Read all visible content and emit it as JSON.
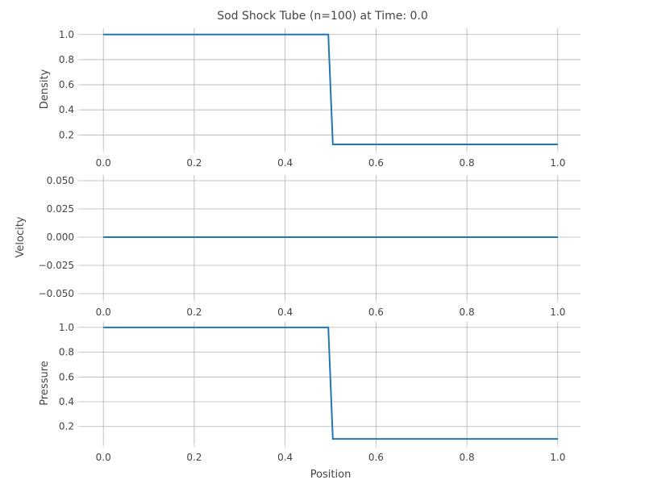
{
  "title": "Sod Shock Tube (n=100) at Time: 0.0",
  "xlabel": "Position",
  "colors": {
    "line": "#1f77b4",
    "grid": "#b0b0b0",
    "text": "#444444",
    "tick": "#cccccc"
  },
  "chart_data": [
    {
      "type": "line",
      "ylabel": "Density",
      "grid": true,
      "xlim": [
        -0.05,
        1.05
      ],
      "ylim": [
        0.08,
        1.05
      ],
      "xticks": [
        0.0,
        0.2,
        0.4,
        0.6,
        0.8,
        1.0
      ],
      "xtick_labels": [
        "0.0",
        "0.2",
        "0.4",
        "0.6",
        "0.8",
        "1.0"
      ],
      "yticks": [
        0.2,
        0.4,
        0.6,
        0.8,
        1.0
      ],
      "ytick_labels": [
        "0.2",
        "0.4",
        "0.6",
        "0.8",
        "1.0"
      ],
      "series": [
        {
          "x": [
            0.0,
            0.495,
            0.505,
            1.0
          ],
          "y": [
            1.0,
            1.0,
            0.125,
            0.125
          ]
        }
      ]
    },
    {
      "type": "line",
      "ylabel": "Velocity",
      "grid": true,
      "xlim": [
        -0.05,
        1.05
      ],
      "ylim": [
        -0.055,
        0.055
      ],
      "xticks": [
        0.0,
        0.2,
        0.4,
        0.6,
        0.8,
        1.0
      ],
      "xtick_labels": [
        "0.0",
        "0.2",
        "0.4",
        "0.6",
        "0.8",
        "1.0"
      ],
      "yticks": [
        -0.05,
        -0.025,
        0.0,
        0.025,
        0.05
      ],
      "ytick_labels": [
        "−0.050",
        "−0.025",
        "0.000",
        "0.025",
        "0.050"
      ],
      "series": [
        {
          "x": [
            0.0,
            1.0
          ],
          "y": [
            0.0,
            0.0
          ]
        }
      ]
    },
    {
      "type": "line",
      "ylabel": "Pressure",
      "grid": true,
      "xlim": [
        -0.05,
        1.05
      ],
      "ylim": [
        0.055,
        1.045
      ],
      "xticks": [
        0.0,
        0.2,
        0.4,
        0.6,
        0.8,
        1.0
      ],
      "xtick_labels": [
        "0.0",
        "0.2",
        "0.4",
        "0.6",
        "0.8",
        "1.0"
      ],
      "yticks": [
        0.2,
        0.4,
        0.6,
        0.8,
        1.0
      ],
      "ytick_labels": [
        "0.2",
        "0.4",
        "0.6",
        "0.8",
        "1.0"
      ],
      "series": [
        {
          "x": [
            0.0,
            0.495,
            0.505,
            1.0
          ],
          "y": [
            1.0,
            1.0,
            0.1,
            0.1
          ]
        }
      ]
    }
  ]
}
